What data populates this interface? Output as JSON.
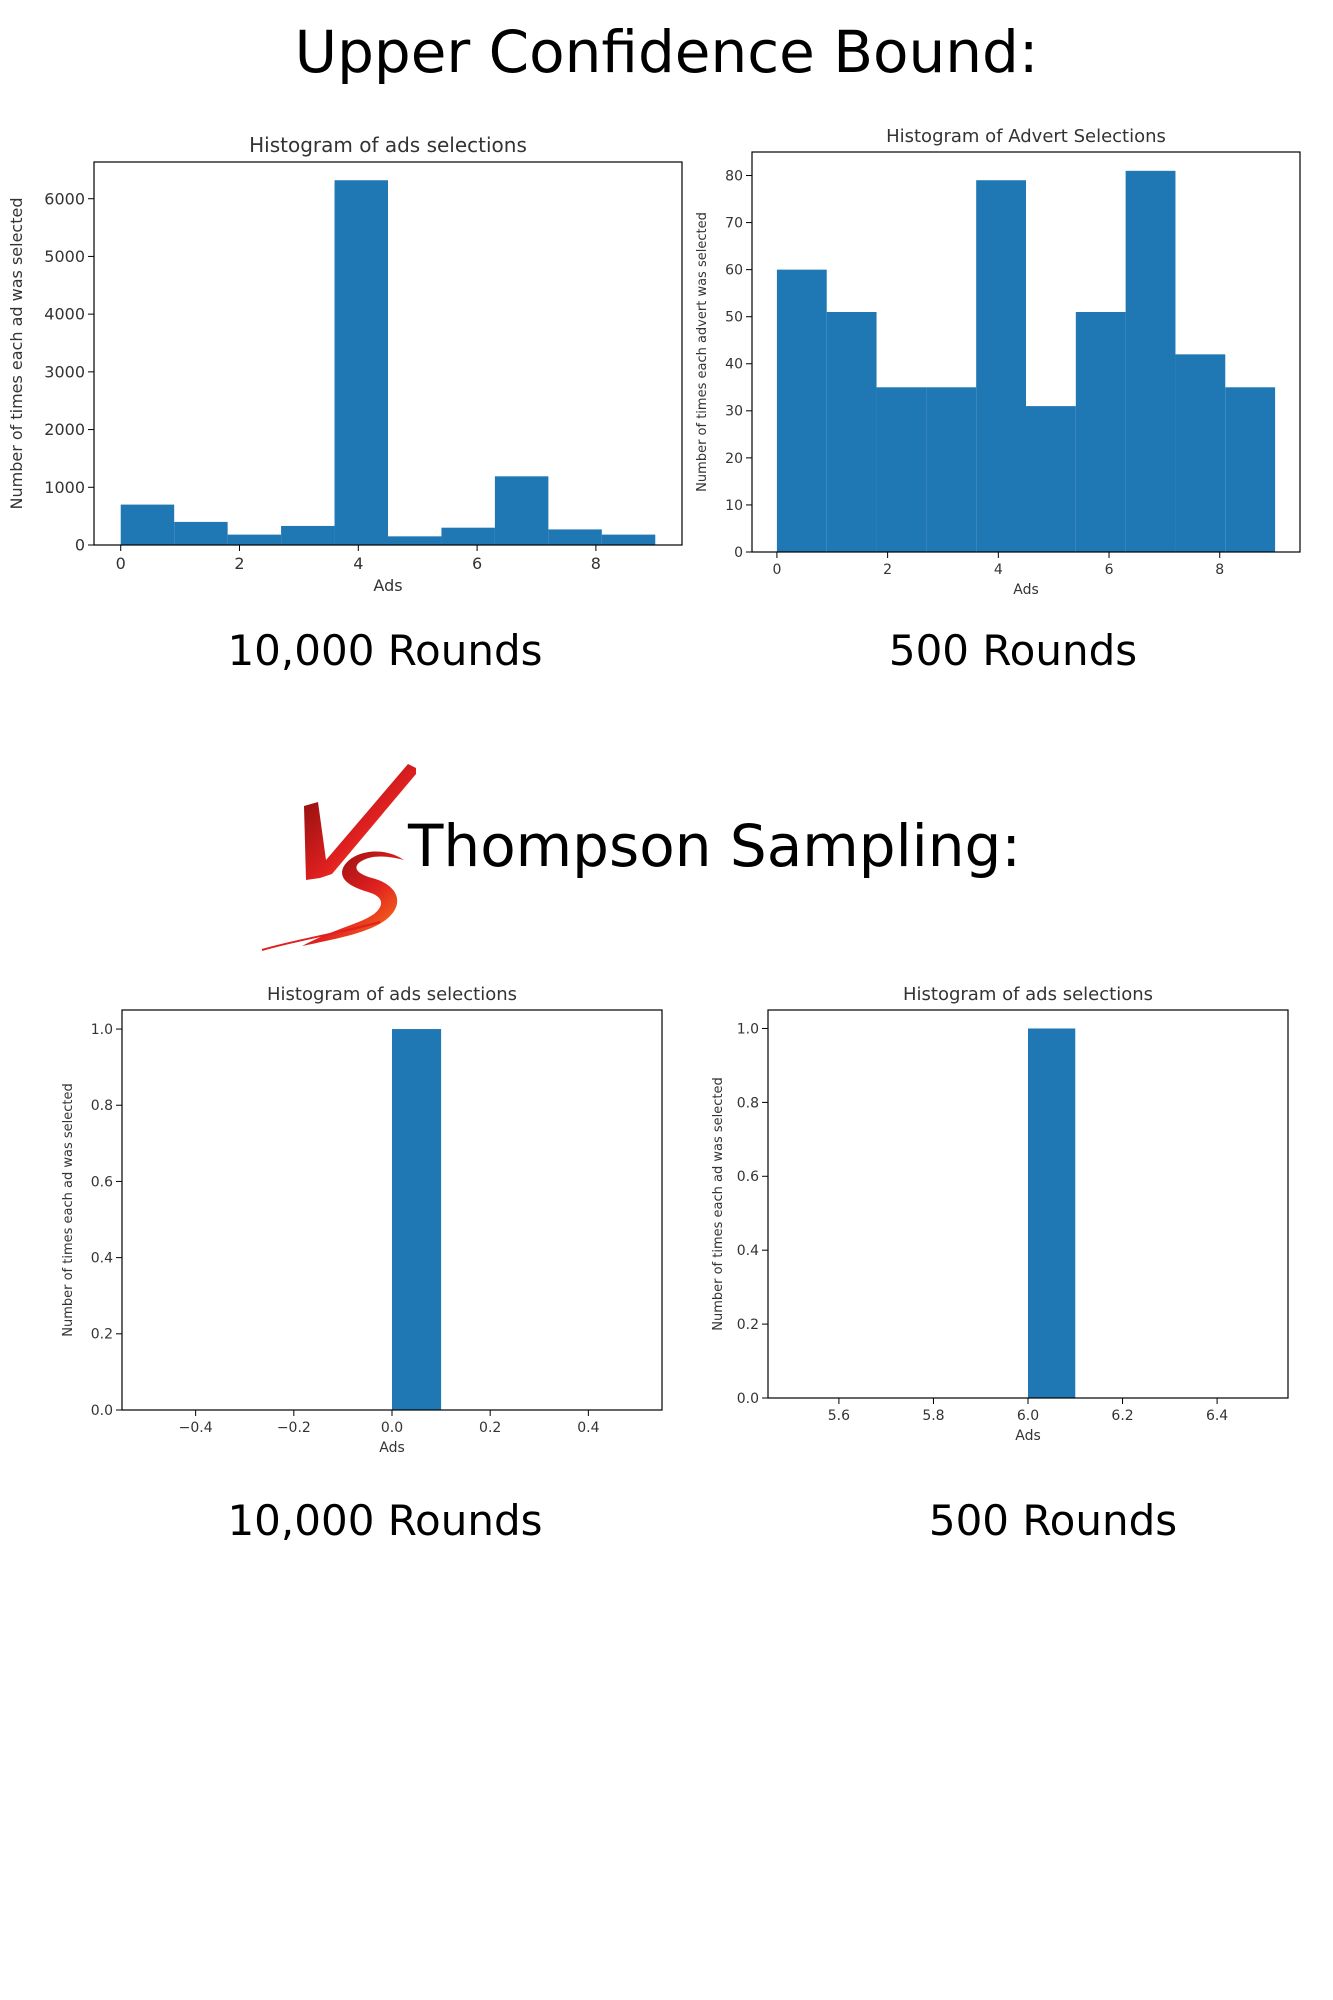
{
  "sections": {
    "ucb_title": "Upper Confidence Bound:",
    "ts_title": "Thompson Sampling:"
  },
  "captions": {
    "ucb_left": "10,000 Rounds",
    "ucb_right": "500 Rounds",
    "ts_left": "10,000 Rounds",
    "ts_right": "500 Rounds"
  },
  "vs_logo": {
    "text": "VS",
    "colors": [
      "#7a0a0a",
      "#e02020",
      "#ff8a1a"
    ]
  },
  "colors": {
    "bar": "#1f77b4",
    "axis": "#000000",
    "text": "#333333"
  },
  "chart_data": [
    {
      "type": "bar",
      "title": "Histogram of ads selections",
      "xlabel": "Ads",
      "ylabel": "Number of times each ad was selected",
      "bin_edges": [
        0,
        0.9,
        1.8,
        2.7,
        3.6,
        4.5,
        5.4,
        6.3,
        7.2,
        8.1,
        9.0
      ],
      "values": [
        700,
        400,
        180,
        330,
        6320,
        150,
        300,
        1190,
        270,
        180
      ],
      "xlim": [
        -0.45,
        9.45
      ],
      "ylim": [
        0,
        6636
      ],
      "xticks": [
        0,
        2,
        4,
        6,
        8
      ],
      "xtick_labels": [
        "0",
        "2",
        "4",
        "6",
        "8"
      ],
      "yticks": [
        0,
        1000,
        2000,
        3000,
        4000,
        5000,
        6000
      ],
      "ytick_labels": [
        "0",
        "1000",
        "2000",
        "3000",
        "4000",
        "5000",
        "6000"
      ],
      "grid": false
    },
    {
      "type": "bar",
      "title": "Histogram of Advert Selections",
      "xlabel": "Ads",
      "ylabel": "Number of times each advert was selected",
      "bin_edges": [
        0,
        0.9,
        1.8,
        2.7,
        3.6,
        4.5,
        5.4,
        6.3,
        7.2,
        8.1,
        9.0
      ],
      "values": [
        60,
        51,
        35,
        35,
        79,
        31,
        51,
        81,
        42,
        35
      ],
      "xlim": [
        -0.45,
        9.45
      ],
      "ylim": [
        0,
        85
      ],
      "xticks": [
        0,
        2,
        4,
        6,
        8
      ],
      "xtick_labels": [
        "0",
        "2",
        "4",
        "6",
        "8"
      ],
      "yticks": [
        0,
        10,
        20,
        30,
        40,
        50,
        60,
        70,
        80
      ],
      "ytick_labels": [
        "0",
        "10",
        "20",
        "30",
        "40",
        "50",
        "60",
        "70",
        "80"
      ],
      "grid": false
    },
    {
      "type": "bar",
      "title": "Histogram of ads selections",
      "xlabel": "Ads",
      "ylabel": "Number of times each ad was selected",
      "bin_edges": [
        0,
        0.1
      ],
      "values": [
        1
      ],
      "xlim": [
        -0.55,
        0.55
      ],
      "ylim": [
        0,
        1.05
      ],
      "xticks": [
        -0.4,
        -0.2,
        0.0,
        0.2,
        0.4
      ],
      "xtick_labels": [
        "−0.4",
        "−0.2",
        "0.0",
        "0.2",
        "0.4"
      ],
      "yticks": [
        0,
        0.2,
        0.4,
        0.6,
        0.8,
        1.0
      ],
      "ytick_labels": [
        "0.0",
        "0.2",
        "0.4",
        "0.6",
        "0.8",
        "1.0"
      ],
      "grid": false
    },
    {
      "type": "bar",
      "title": "Histogram of ads selections",
      "xlabel": "Ads",
      "ylabel": "Number of times each ad was selected",
      "bin_edges": [
        6.0,
        6.1
      ],
      "values": [
        1
      ],
      "xlim": [
        5.45,
        6.55
      ],
      "ylim": [
        0,
        1.05
      ],
      "xticks": [
        5.6,
        5.8,
        6.0,
        6.2,
        6.4
      ],
      "xtick_labels": [
        "5.6",
        "5.8",
        "6.0",
        "6.2",
        "6.4"
      ],
      "yticks": [
        0,
        0.2,
        0.4,
        0.6,
        0.8,
        1.0
      ],
      "ytick_labels": [
        "0.0",
        "0.2",
        "0.4",
        "0.6",
        "0.8",
        "1.0"
      ],
      "grid": false
    }
  ]
}
